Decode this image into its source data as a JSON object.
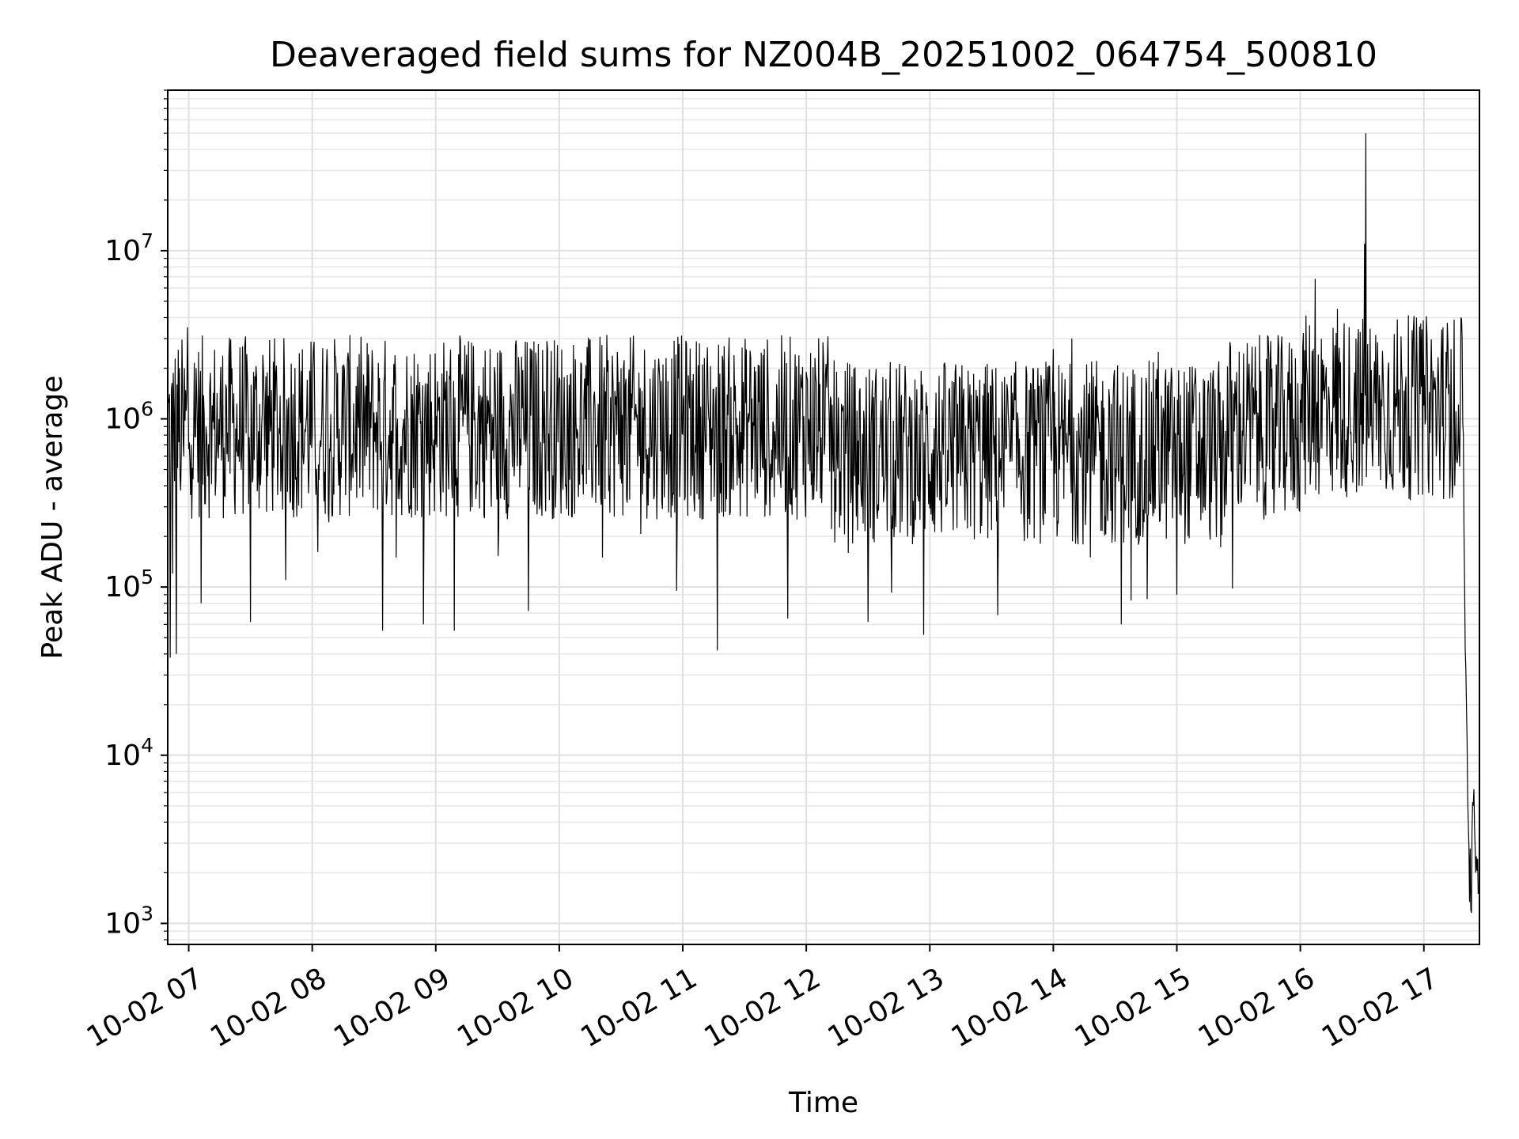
{
  "chart_data": {
    "type": "line",
    "title": "Deaveraged field sums for NZ004B_20251002_064754_500810",
    "xlabel": "Time",
    "ylabel": "Peak ADU - average",
    "yscale": "log",
    "grid": true,
    "xlim_hours": [
      6.83,
      17.45
    ],
    "ylim": [
      750,
      90000000
    ],
    "x_ticks": [
      {
        "hour": 7,
        "label": "10-02 07"
      },
      {
        "hour": 8,
        "label": "10-02 08"
      },
      {
        "hour": 9,
        "label": "10-02 09"
      },
      {
        "hour": 10,
        "label": "10-02 10"
      },
      {
        "hour": 11,
        "label": "10-02 11"
      },
      {
        "hour": 12,
        "label": "10-02 12"
      },
      {
        "hour": 13,
        "label": "10-02 13"
      },
      {
        "hour": 14,
        "label": "10-02 14"
      },
      {
        "hour": 15,
        "label": "10-02 15"
      },
      {
        "hour": 16,
        "label": "10-02 16"
      },
      {
        "hour": 17,
        "label": "10-02 17"
      }
    ],
    "y_ticks": [
      {
        "value": 1000,
        "base": "10",
        "exp": "3"
      },
      {
        "value": 10000,
        "base": "10",
        "exp": "4"
      },
      {
        "value": 100000,
        "base": "10",
        "exp": "5"
      },
      {
        "value": 1000000,
        "base": "10",
        "exp": "6"
      },
      {
        "value": 10000000,
        "base": "10",
        "exp": "7"
      }
    ],
    "series": [
      {
        "name": "peak ADU - average",
        "color": "#000000",
        "x_hours": [
          6.83,
          6.85,
          6.87,
          6.9,
          6.93,
          6.96,
          6.99,
          7.02,
          7.06,
          7.1,
          7.14,
          7.19,
          7.25,
          7.3,
          7.4,
          7.5,
          7.6,
          7.75,
          7.9,
          8.0,
          8.12,
          8.25,
          8.4,
          8.52,
          8.57,
          8.62,
          8.7,
          8.8,
          8.9,
          9.0,
          9.15,
          9.3,
          9.45,
          9.6,
          9.75,
          9.9,
          10.05,
          10.2,
          10.35,
          10.5,
          10.65,
          10.8,
          10.95,
          11.1,
          11.25,
          11.28,
          11.4,
          11.55,
          11.7,
          11.85,
          12.0,
          12.15,
          12.3,
          12.45,
          12.5,
          12.6,
          12.75,
          12.9,
          12.95,
          13.1,
          13.25,
          13.4,
          13.55,
          13.7,
          13.85,
          14.0,
          14.05,
          14.15,
          14.3,
          14.45,
          14.55,
          14.7,
          14.85,
          15.0,
          15.15,
          15.3,
          15.45,
          15.6,
          15.75,
          15.9,
          16.0,
          16.12,
          16.22,
          16.3,
          16.38,
          16.45,
          16.5,
          16.52,
          16.53,
          16.55,
          16.6,
          16.7,
          16.85,
          17.0,
          17.1,
          17.15,
          17.22,
          17.25,
          17.3,
          17.32,
          17.33,
          17.35,
          17.36,
          17.38,
          17.4,
          17.42,
          17.44
        ],
        "values": [
          800000,
          38000,
          120000,
          40000,
          450000,
          600000,
          3500000,
          700000,
          2000000,
          80000,
          900000,
          1200000,
          700000,
          1600000,
          600000,
          62000,
          2400000,
          500000,
          1100000,
          800000,
          2600000,
          700000,
          1500000,
          1100000,
          55000,
          800000,
          400000,
          1800000,
          60000,
          700000,
          55000,
          1200000,
          300000,
          900000,
          72000,
          2900000,
          400000,
          1300000,
          150000,
          2000000,
          600000,
          1800000,
          95000,
          700000,
          1500000,
          42000,
          800000,
          2300000,
          500000,
          65000,
          1900000,
          700000,
          1200000,
          300000,
          62000,
          900000,
          1400000,
          350000,
          52000,
          1300000,
          400000,
          1200000,
          68000,
          900000,
          1500000,
          2600000,
          500000,
          3000000,
          150000,
          1500000,
          60000,
          800000,
          2500000,
          90000,
          2000000,
          1200000,
          98000,
          1600000,
          500000,
          1900000,
          1300000,
          6800000,
          1000000,
          4500000,
          900000,
          3000000,
          400000,
          11000000,
          50000000,
          800000,
          2200000,
          450000,
          1500000,
          1200000,
          600000,
          900000,
          2600000,
          400000,
          4000000,
          800000,
          100000,
          12000,
          4000,
          1200,
          5000,
          2000,
          1500
        ]
      }
    ]
  }
}
